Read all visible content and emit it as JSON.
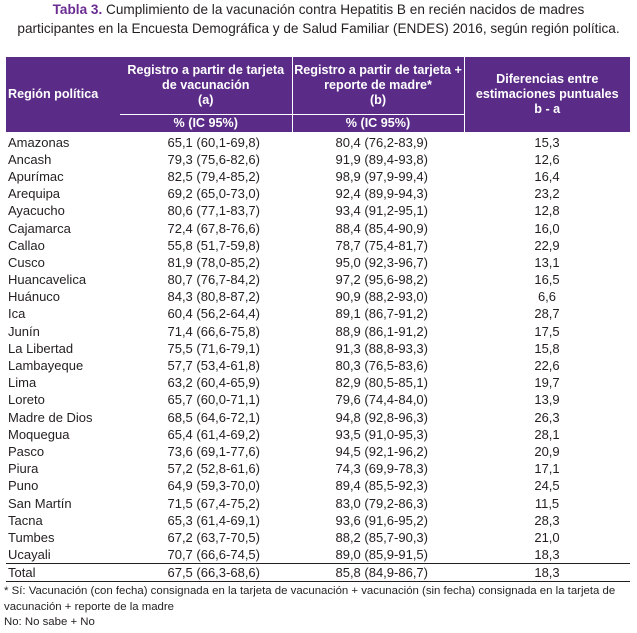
{
  "caption": {
    "label": "Tabla 3.",
    "line1": " Cumplimiento de la vacunación contra Hepatitis B en recién nacidos de madres",
    "line2": "participantes en la Encuesta Demográfica y de Salud Familiar (ENDES) 2016, según región política."
  },
  "table": {
    "headers": {
      "region": "Región política",
      "col_a": "Registro a partir de tarjeta de vacunación",
      "col_a_letter": "(a)",
      "col_b": "Registro a partir de tarjeta + reporte de madre*",
      "col_b_letter": "(b)",
      "col_diff": "Diferencias entre estimaciones puntuales",
      "col_diff_letter": "b - a",
      "sub_a": "% (IC 95%)",
      "sub_b": "% (IC 95%)"
    },
    "rows": [
      {
        "region": "Amazonas",
        "a": "65,1 (60,1-69,8)",
        "b": "80,4 (76,2-83,9)",
        "diff": "15,3"
      },
      {
        "region": "Ancash",
        "a": "79,3 (75,6-82,6)",
        "b": "91,9 (89,4-93,8)",
        "diff": "12,6"
      },
      {
        "region": "Apurímac",
        "a": "82,5 (79,4-85,2)",
        "b": "98,9 (97,9-99,4)",
        "diff": "16,4"
      },
      {
        "region": "Arequipa",
        "a": "69,2 (65,0-73,0)",
        "b": "92,4 (89,9-94,3)",
        "diff": "23,2"
      },
      {
        "region": "Ayacucho",
        "a": "80,6 (77,1-83,7)",
        "b": "93,4 (91,2-95,1)",
        "diff": "12,8"
      },
      {
        "region": "Cajamarca",
        "a": "72,4 (67,8-76,6)",
        "b": "88,4 (85,4-90,9)",
        "diff": "16,0"
      },
      {
        "region": "Callao",
        "a": "55,8 (51,7-59,8)",
        "b": "78,7 (75,4-81,7)",
        "diff": "22,9"
      },
      {
        "region": "Cusco",
        "a": "81,9 (78,0-85,2)",
        "b": "95,0 (92,3-96,7)",
        "diff": "13,1"
      },
      {
        "region": "Huancavelica",
        "a": "80,7 (76,7-84,2)",
        "b": "97,2 (95,6-98,2)",
        "diff": "16,5"
      },
      {
        "region": "Huánuco",
        "a": "84,3 (80,8-87,2)",
        "b": "90,9 (88,2-93,0)",
        "diff": "6,6"
      },
      {
        "region": "Ica",
        "a": "60,4 (56,2-64,4)",
        "b": "89,1 (86,7-91,2)",
        "diff": "28,7"
      },
      {
        "region": "Junín",
        "a": "71,4 (66,6-75,8)",
        "b": "88,9 (86,1-91,2)",
        "diff": "17,5"
      },
      {
        "region": "La Libertad",
        "a": "75,5 (71,6-79,1)",
        "b": "91,3 (88,8-93,3)",
        "diff": "15,8"
      },
      {
        "region": "Lambayeque",
        "a": "57,7 (53,4-61,8)",
        "b": "80,3 (76,5-83,6)",
        "diff": "22,6"
      },
      {
        "region": "Lima",
        "a": "63,2 (60,4-65,9)",
        "b": "82,9 (80,5-85,1)",
        "diff": "19,7"
      },
      {
        "region": "Loreto",
        "a": "65,7 (60,0-71,1)",
        "b": "79,6 (74,4-84,0)",
        "diff": "13,9"
      },
      {
        "region": "Madre de Dios",
        "a": "68,5 (64,6-72,1)",
        "b": "94,8 (92,8-96,3)",
        "diff": "26,3"
      },
      {
        "region": "Moquegua",
        "a": "65,4 (61,4-69,2)",
        "b": "93,5 (91,0-95,3)",
        "diff": "28,1"
      },
      {
        "region": "Pasco",
        "a": "73,6 (69,1-77,6)",
        "b": "94,5 (92,1-96,2)",
        "diff": "20,9"
      },
      {
        "region": "Piura",
        "a": "57,2 (52,8-61,6)",
        "b": "74,3 (69,9-78,3)",
        "diff": "17,1"
      },
      {
        "region": "Puno",
        "a": "64,9 (59,3-70,0)",
        "b": "89,4 (85,5-92,3)",
        "diff": "24,5"
      },
      {
        "region": "San Martín",
        "a": "71,5 (67,4-75,2)",
        "b": "83,0 (79,2-86,3)",
        "diff": "11,5"
      },
      {
        "region": "Tacna",
        "a": "65,3 (61,4-69,1)",
        "b": "93,6 (91,6-95,2)",
        "diff": "28,3"
      },
      {
        "region": "Tumbes",
        "a": "67,2 (63,7-70,5)",
        "b": "88,2 (85,7-90,3)",
        "diff": "21,0"
      },
      {
        "region": "Ucayali",
        "a": "70,7 (66,6-74,5)",
        "b": "89,0 (85,9-91,5)",
        "diff": "18,3"
      }
    ],
    "total": {
      "region": "Total",
      "a": "67,5 (66,3-68,6)",
      "b": "85,8 (84,9-86,7)",
      "diff": "18,3"
    }
  },
  "footnotes": {
    "note1": "* Sí: Vacunación (con fecha) consignada en la tarjeta de vacunación + vacunación (sin fecha) consignada en la tarjeta de vacunación + reporte de la madre",
    "note2": "No: No sabe + No"
  },
  "colors": {
    "header_bg": "#5b2c87",
    "caption_label": "#6a2c91"
  }
}
